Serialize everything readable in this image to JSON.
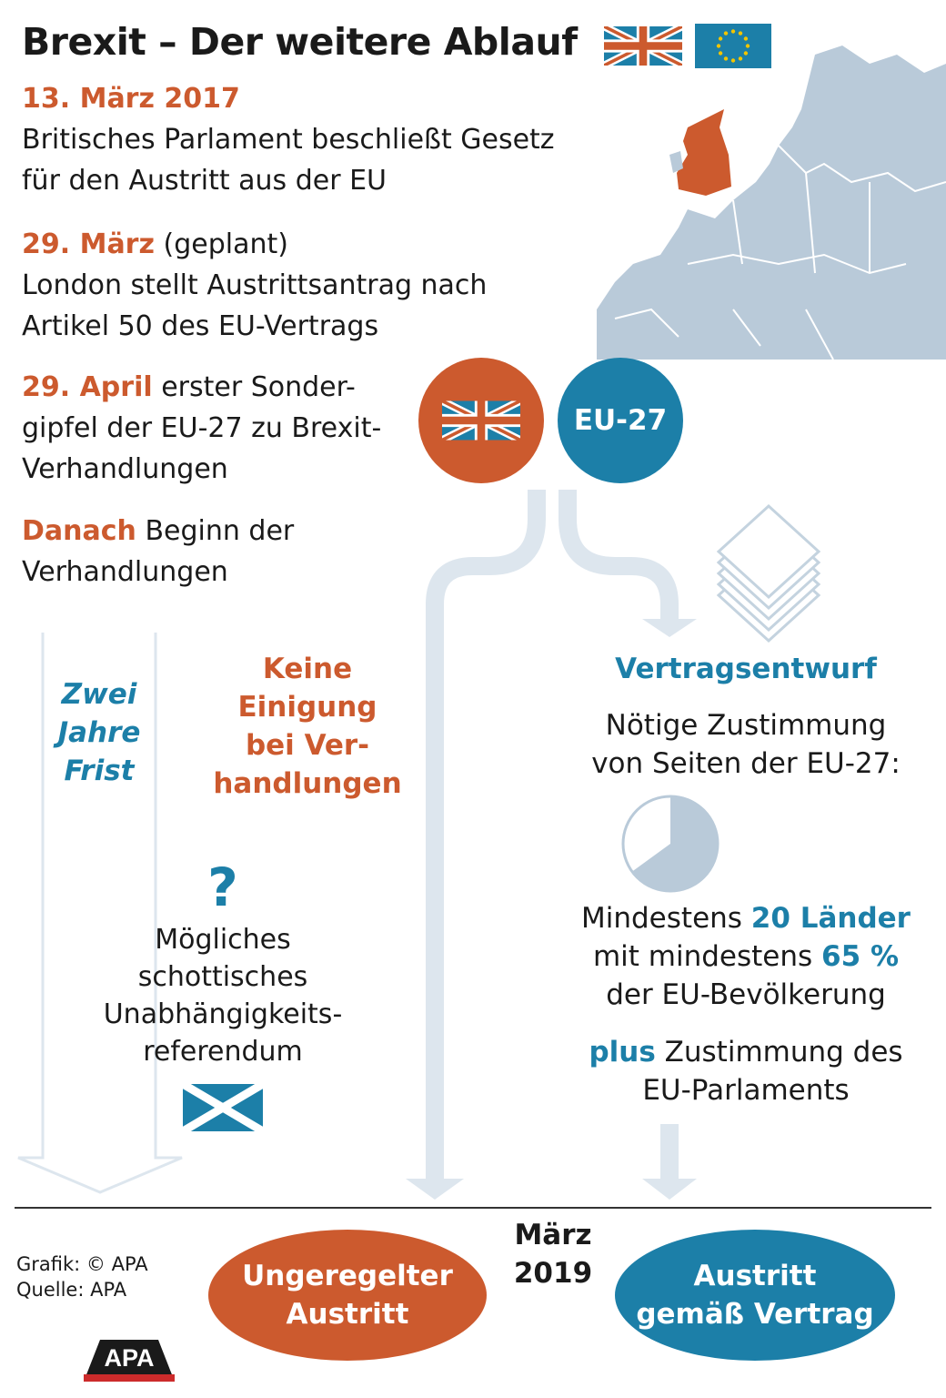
{
  "title": "Brexit – Der weitere Ablauf",
  "colors": {
    "orange": "#cc5a2e",
    "blue": "#1c7fa8",
    "pale_blue": "#b9cad9",
    "arrow": "#dde6ee"
  },
  "events": [
    {
      "date": "13. März 2017",
      "note": "",
      "lines": [
        "Britisches Parlament beschließt Gesetz",
        "für den Austritt aus der EU"
      ]
    },
    {
      "date": "29. März",
      "note": "(geplant)",
      "lines": [
        "London stellt Austrittsantrag nach",
        "Artikel 50 des EU-Vertrags"
      ]
    },
    {
      "date": "29. April",
      "note": "erster Sonder-",
      "lines": [
        "gipfel der EU-27 zu Brexit-",
        "Verhandlungen"
      ]
    },
    {
      "date": "Danach",
      "note": "Beginn der",
      "lines": [
        "Verhandlungen"
      ]
    }
  ],
  "circles": {
    "uk_flag": "uk-flag-icon",
    "eu27": "EU-27"
  },
  "left_column": {
    "frist": [
      "Zwei",
      "Jahre",
      "Frist"
    ],
    "keine_einigung": [
      "Keine",
      "Einigung",
      "bei Ver-",
      "handlungen"
    ],
    "question_mark": "?",
    "referendum": [
      "Mögliches",
      "schottisches",
      "Unabhängigkeits-",
      "referendum"
    ]
  },
  "right_column": {
    "heading": "Vertragsentwurf",
    "subheading": [
      "Nötige Zustimmung",
      "von Seiten der EU-27:"
    ],
    "pie_share": 0.65,
    "condition": {
      "line1_pre": "Mindestens ",
      "line1_hl": "20 Länder",
      "line2_pre": "mit mindestens ",
      "line2_hl": "65 %",
      "line3": "der EU-Bevölkerung"
    },
    "plus": {
      "hl": "plus",
      "rest": " Zustimmung des",
      "line2": "EU-Parlaments"
    }
  },
  "deadline": [
    "März",
    "2019"
  ],
  "outcomes": {
    "ungeregelt": [
      "Ungeregelter",
      "Austritt"
    ],
    "vertrag": [
      "Austritt",
      "gemäß Vertrag"
    ]
  },
  "credit": {
    "grafik": "Grafik: © APA",
    "quelle": "Quelle: APA",
    "logo": "APA"
  }
}
